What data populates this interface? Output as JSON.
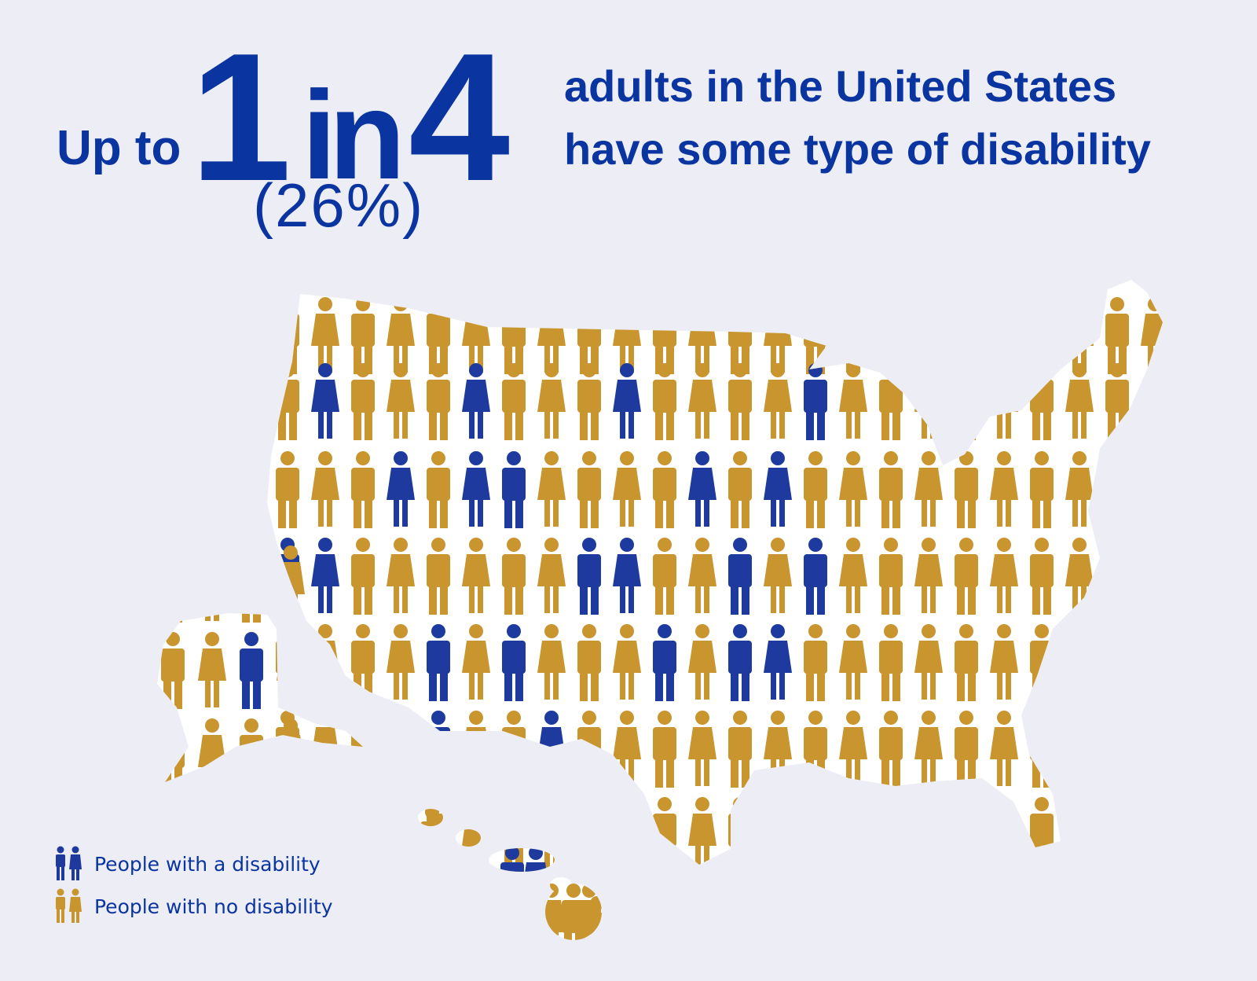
{
  "headline": {
    "prefix": "Up to",
    "numerator": "1",
    "connector": "in",
    "denominator": "4",
    "percent": "(26%)",
    "line1": "adults in the United States",
    "line2": "have some type of disability"
  },
  "legend": {
    "disability_label": "People with a disability",
    "no_disability_label": "People with no disability"
  },
  "colors": {
    "disability": "#1f3a9e",
    "no_disability": "#c8952e",
    "background": "#ededf5",
    "map_fill": "#ffffff",
    "headline_text": "#0a34a0"
  },
  "icons": {
    "disability": "person-figure-blue",
    "no_disability": "person-figure-gold"
  },
  "stat": {
    "share_with_disability_percent": 26
  }
}
